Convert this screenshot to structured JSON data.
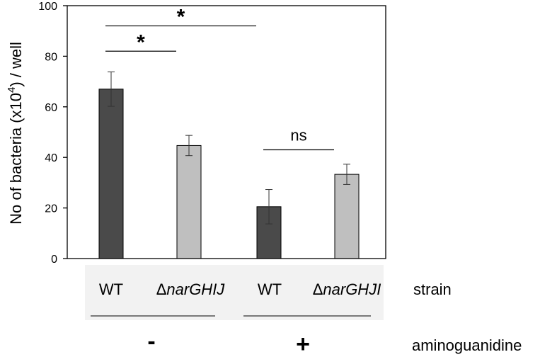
{
  "chart_data": {
    "type": "bar",
    "ylabel": "No of bacteria (x10",
    "ylabel_sup": "4",
    "ylabel_tail": ") / well",
    "ylim": [
      0,
      100
    ],
    "yticks": [
      "0",
      "20",
      "40",
      "60",
      "80",
      "100"
    ],
    "categories": [
      {
        "prefix": "",
        "name": "WT"
      },
      {
        "prefix": "Δ",
        "name": "narGHIJ"
      },
      {
        "prefix": "",
        "name": "WT"
      },
      {
        "prefix": "Δ",
        "name": "narGHJI"
      }
    ],
    "values": [
      67,
      44.7,
      20.5,
      33.3
    ],
    "errors": [
      6.8,
      4.0,
      6.8,
      4.0
    ],
    "bar_colors": [
      "#4a4a4a",
      "#bfbfbf",
      "#4a4a4a",
      "#bfbfbf"
    ],
    "strain_label": "strain",
    "treatment_label": "aminoguanidine",
    "treatment_groups": [
      "-",
      "+"
    ],
    "significance": [
      {
        "between": [
          0,
          2
        ],
        "label": "*",
        "level": 92
      },
      {
        "between": [
          0,
          1
        ],
        "label": "*",
        "level": 82
      },
      {
        "between": [
          2,
          3
        ],
        "label": "ns",
        "level": 43
      }
    ]
  }
}
